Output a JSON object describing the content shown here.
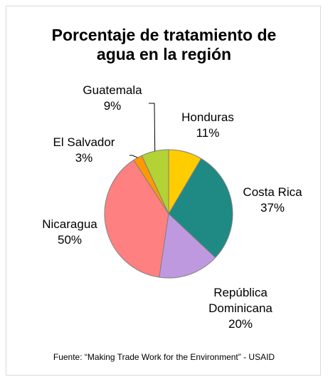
{
  "chart_data": {
    "type": "pie",
    "title_lines": [
      "Porcentaje de tratamiento de",
      "agua en la región"
    ],
    "slices": [
      {
        "name": "Honduras",
        "percent": 11,
        "value": 8.5,
        "color": "#ffcc00"
      },
      {
        "name": "Costa Rica",
        "percent": 37,
        "value": 28.5,
        "color": "#1f8a84"
      },
      {
        "name": "República Dominicana",
        "name_lines": [
          "República",
          "Dominicana"
        ],
        "percent": 20,
        "value": 15.4,
        "color": "#bf99e0"
      },
      {
        "name": "Nicaragua",
        "percent": 50,
        "value": 38.5,
        "color": "#ff8080"
      },
      {
        "name": "El Salvador",
        "percent": 3,
        "value": 2.3,
        "color": "#ff9900"
      },
      {
        "name": "Guatemala",
        "percent": 9,
        "value": 6.9,
        "color": "#b2d235"
      }
    ],
    "percent_suffix": "%",
    "legend": "none",
    "data_labels": "category name and percent, outside"
  },
  "source": "Fuente: “Making Trade Work for the Environment” - USAID"
}
